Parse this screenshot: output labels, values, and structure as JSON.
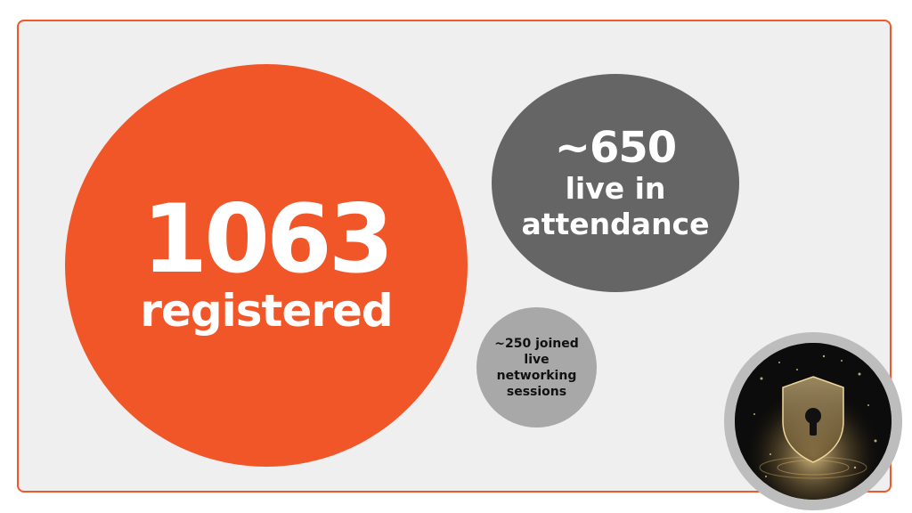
{
  "registered": {
    "number": "1063",
    "label": "registered"
  },
  "attendance": {
    "number": "~650",
    "label": "live in attendance"
  },
  "networking": {
    "text": "~250 joined live networking sessions"
  },
  "image": {
    "icon": "shield-lock-icon"
  },
  "colors": {
    "accent": "#f05627",
    "dark_gray": "#656565",
    "light_gray": "#a8a8a8",
    "panel": "#efefef"
  }
}
